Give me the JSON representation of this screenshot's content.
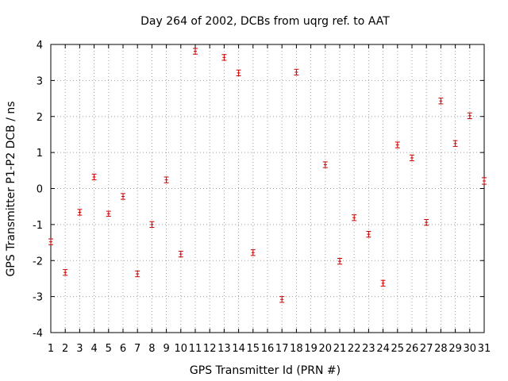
{
  "chart_data": {
    "type": "scatter",
    "title": "Day 264 of 2002, DCBs from uqrg ref. to AAT",
    "xlabel": "GPS Transmitter Id (PRN #)",
    "ylabel": "GPS Transmitter P1-P2 DCB / ns",
    "xlim": [
      1,
      31
    ],
    "ylim": [
      -4,
      4
    ],
    "x_ticks": [
      "1",
      "2",
      "3",
      "4",
      "5",
      "6",
      "7",
      "8",
      "9",
      "10",
      "11",
      "12",
      "13",
      "14",
      "15",
      "16",
      "17",
      "18",
      "19",
      "20",
      "21",
      "22",
      "23",
      "24",
      "25",
      "26",
      "27",
      "28",
      "29",
      "30",
      "31"
    ],
    "y_ticks": [
      "4",
      "3",
      "2",
      "1",
      "0",
      "-1",
      "-2",
      "-3",
      "-4"
    ],
    "y_tick_values": [
      4,
      3,
      2,
      1,
      0,
      -1,
      -2,
      -3,
      -4
    ],
    "grid": true,
    "marker_color": "#cc0000",
    "points": [
      {
        "x": 1,
        "y": -1.48,
        "err": 0.08
      },
      {
        "x": 2,
        "y": -2.33,
        "err": 0.08
      },
      {
        "x": 3,
        "y": -0.66,
        "err": 0.08
      },
      {
        "x": 4,
        "y": 0.32,
        "err": 0.08
      },
      {
        "x": 5,
        "y": -0.7,
        "err": 0.07
      },
      {
        "x": 6,
        "y": -0.22,
        "err": 0.08
      },
      {
        "x": 7,
        "y": -2.37,
        "err": 0.08
      },
      {
        "x": 8,
        "y": -1.0,
        "err": 0.08
      },
      {
        "x": 9,
        "y": 0.24,
        "err": 0.08
      },
      {
        "x": 10,
        "y": -1.82,
        "err": 0.08
      },
      {
        "x": 11,
        "y": 3.81,
        "err": 0.08
      },
      {
        "x": 13,
        "y": 3.64,
        "err": 0.08
      },
      {
        "x": 14,
        "y": 3.21,
        "err": 0.08
      },
      {
        "x": 15,
        "y": -1.78,
        "err": 0.08
      },
      {
        "x": 17,
        "y": -3.08,
        "err": 0.08
      },
      {
        "x": 18,
        "y": 3.23,
        "err": 0.08
      },
      {
        "x": 20,
        "y": 0.66,
        "err": 0.08
      },
      {
        "x": 21,
        "y": -2.02,
        "err": 0.08
      },
      {
        "x": 22,
        "y": -0.81,
        "err": 0.08
      },
      {
        "x": 23,
        "y": -1.27,
        "err": 0.08
      },
      {
        "x": 24,
        "y": -2.63,
        "err": 0.08
      },
      {
        "x": 25,
        "y": 1.21,
        "err": 0.08
      },
      {
        "x": 26,
        "y": 0.85,
        "err": 0.08
      },
      {
        "x": 27,
        "y": -0.94,
        "err": 0.08
      },
      {
        "x": 28,
        "y": 2.43,
        "err": 0.08
      },
      {
        "x": 29,
        "y": 1.25,
        "err": 0.08
      },
      {
        "x": 30,
        "y": 2.02,
        "err": 0.08
      },
      {
        "x": 31,
        "y": 0.21,
        "err": 0.09
      }
    ]
  }
}
